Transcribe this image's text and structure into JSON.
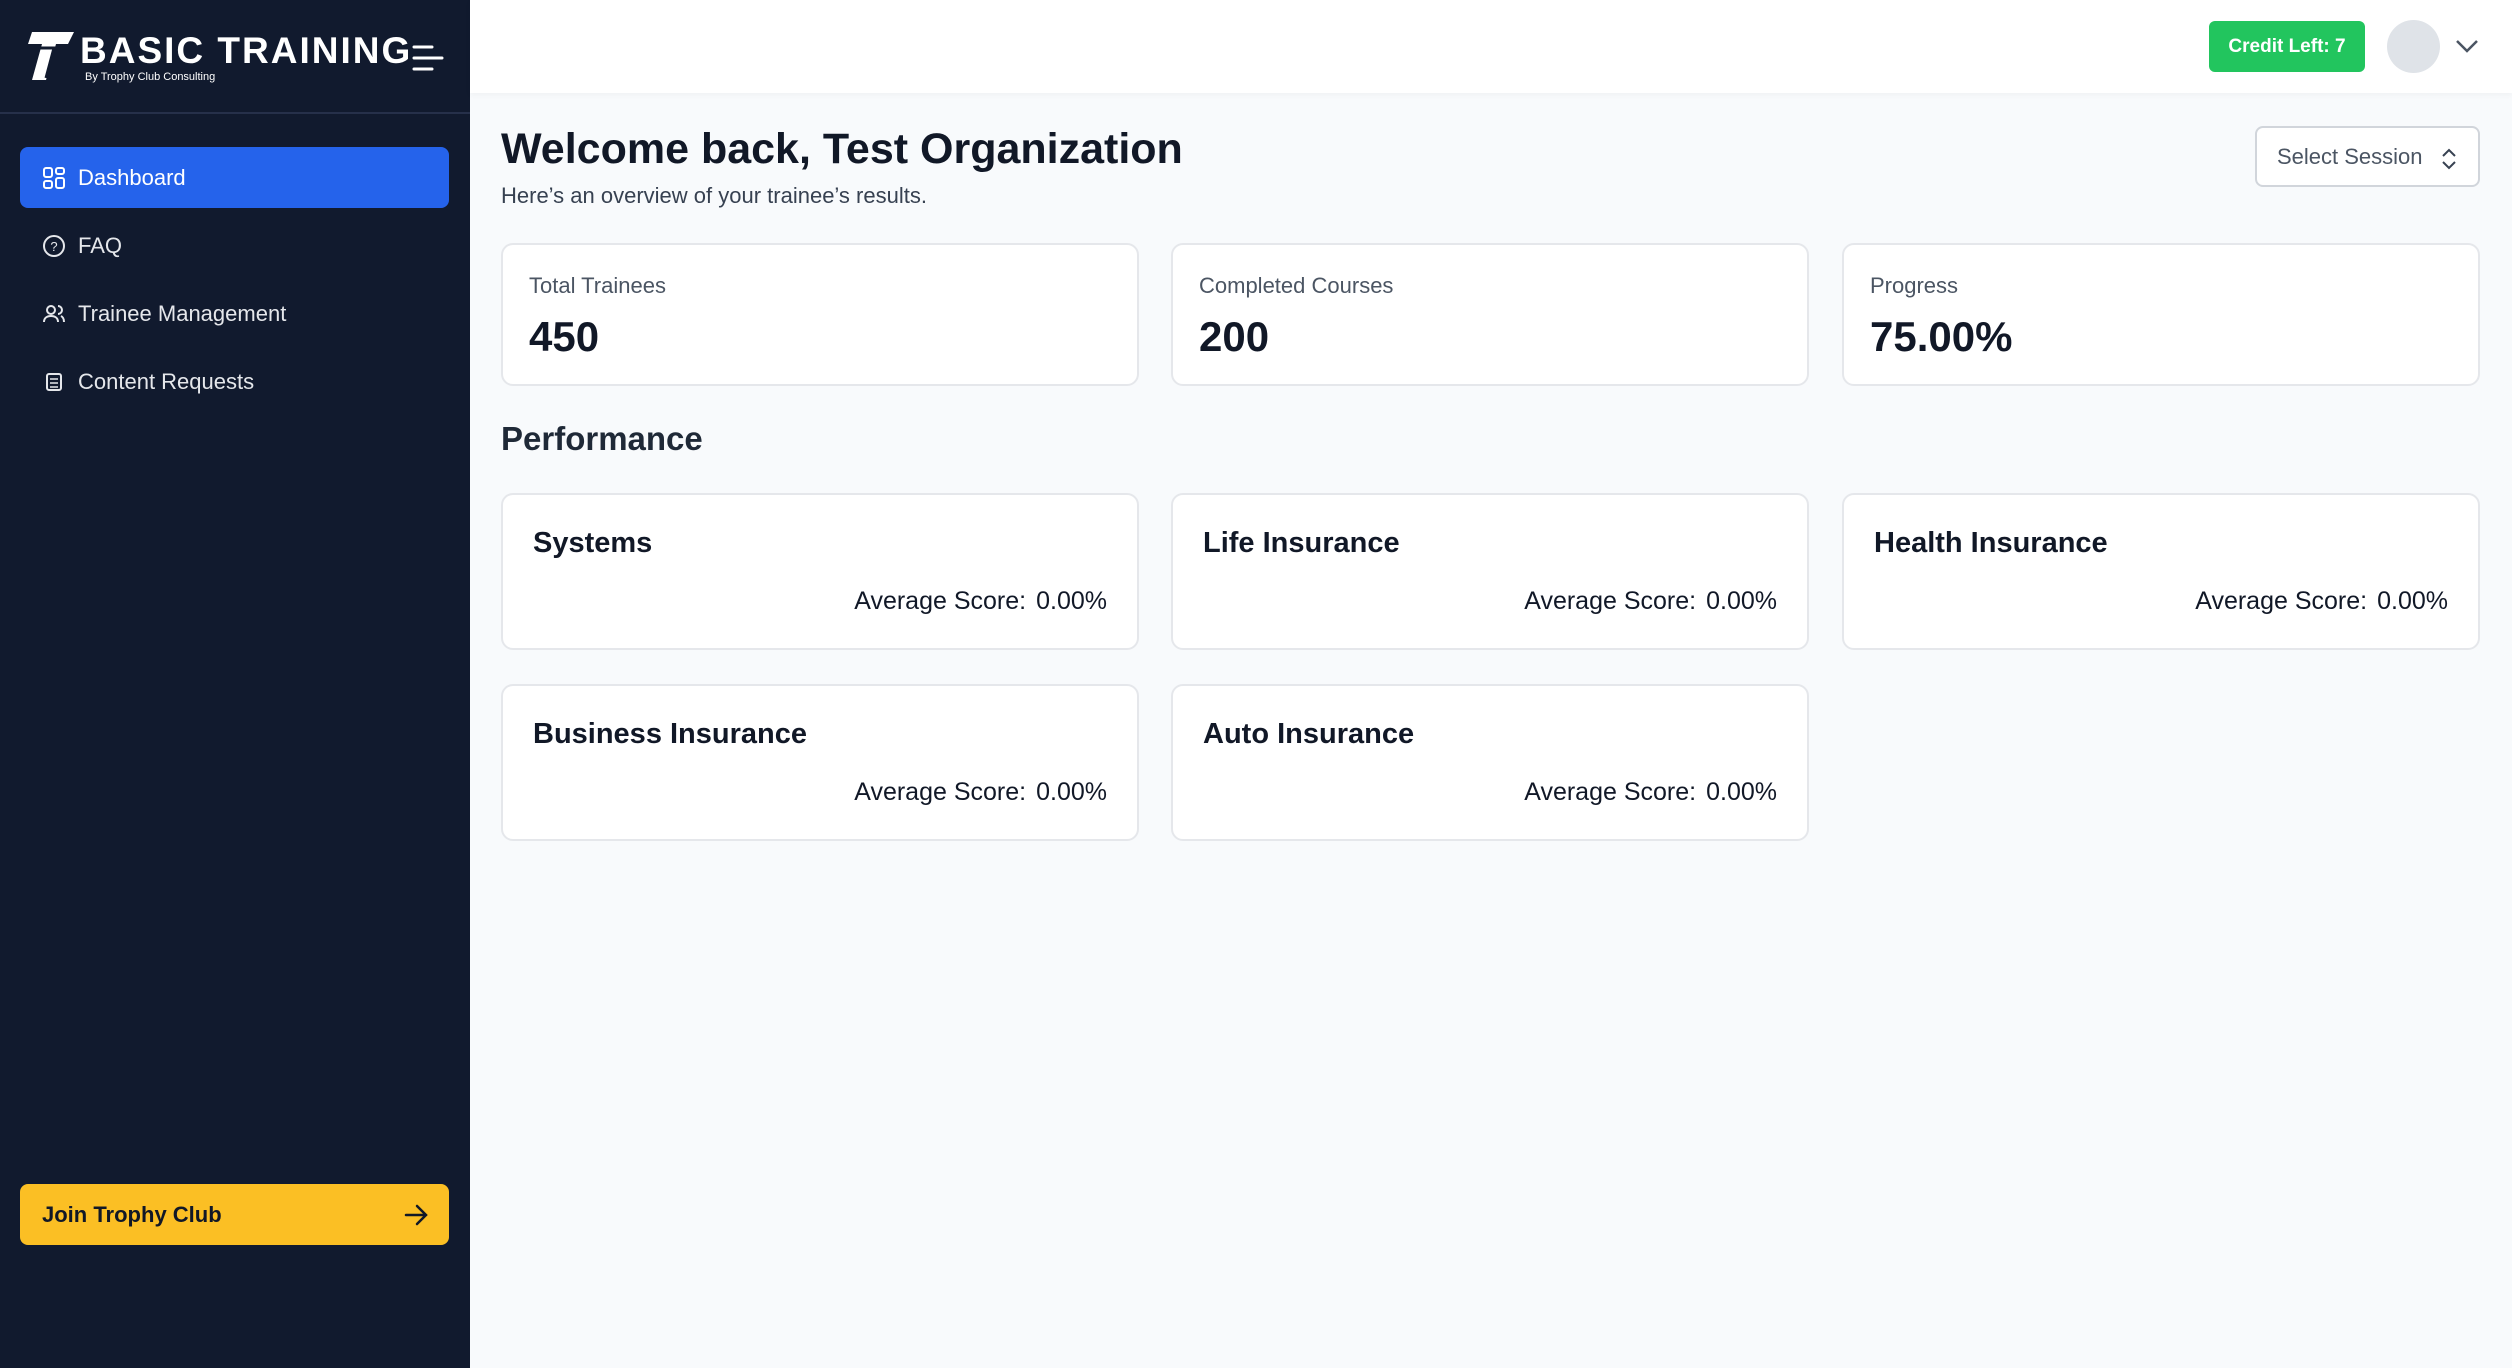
{
  "brand": {
    "title": "BASIC TRAINING",
    "subtitle": "By Trophy Club Consulting"
  },
  "nav": [
    "Dashboard",
    "FAQ",
    "Trainee Management",
    "Content Requests"
  ],
  "join_button": "Join Trophy Club",
  "topbar": {
    "credit": "Credit Left: 7"
  },
  "header": {
    "title": "Welcome back, Test Organization",
    "subtitle": "Here’s an overview of your trainee’s results.",
    "session_select": "Select Session"
  },
  "stats": [
    {
      "label": "Total Trainees",
      "value": "450"
    },
    {
      "label": "Completed Courses",
      "value": "200"
    },
    {
      "label": "Progress",
      "value": "75.00%"
    }
  ],
  "performance": {
    "title": "Performance",
    "score_label": "Average Score:",
    "cards": [
      {
        "name": "Systems",
        "score": "0.00%"
      },
      {
        "name": "Life Insurance",
        "score": "0.00%"
      },
      {
        "name": "Health Insurance",
        "score": "0.00%"
      },
      {
        "name": "Business Insurance",
        "score": "0.00%"
      },
      {
        "name": "Auto Insurance",
        "score": "0.00%"
      }
    ]
  }
}
